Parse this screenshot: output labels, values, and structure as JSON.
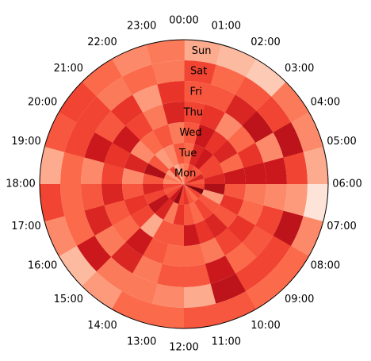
{
  "chart_data": {
    "type": "heatmap",
    "subtype": "polar",
    "colormap": "Reds",
    "theta_direction": "clockwise",
    "theta_zero": "top",
    "hours": [
      "00:00",
      "01:00",
      "02:00",
      "03:00",
      "04:00",
      "05:00",
      "06:00",
      "07:00",
      "08:00",
      "09:00",
      "10:00",
      "11:00",
      "12:00",
      "13:00",
      "14:00",
      "15:00",
      "16:00",
      "17:00",
      "18:00",
      "19:00",
      "20:00",
      "21:00",
      "22:00",
      "23:00"
    ],
    "days": [
      "Mon",
      "Tue",
      "Wed",
      "Thu",
      "Fri",
      "Sat",
      "Sun"
    ],
    "values": [
      [
        0.45,
        0.5,
        0.55,
        0.6,
        0.55,
        0.6,
        0.3
      ],
      [
        0.6,
        0.7,
        0.75,
        0.65,
        0.55,
        0.5,
        0.25
      ],
      [
        0.55,
        0.75,
        0.65,
        0.4,
        0.7,
        0.55,
        0.2
      ],
      [
        0.55,
        0.6,
        0.7,
        0.5,
        0.8,
        0.6,
        0.45
      ],
      [
        0.7,
        0.6,
        0.5,
        0.65,
        0.4,
        0.8,
        0.4
      ],
      [
        0.55,
        0.7,
        0.75,
        0.75,
        0.75,
        0.6,
        0.3
      ],
      [
        0.6,
        0.85,
        0.55,
        0.45,
        0.4,
        0.35,
        0.1
      ],
      [
        0.95,
        0.35,
        0.65,
        0.5,
        0.6,
        0.8,
        0.4
      ],
      [
        0.6,
        0.55,
        0.55,
        0.65,
        0.55,
        0.6,
        0.5
      ],
      [
        0.5,
        0.6,
        0.7,
        0.6,
        0.5,
        0.6,
        0.5
      ],
      [
        0.55,
        0.5,
        0.65,
        0.45,
        0.75,
        0.8,
        0.55
      ],
      [
        0.65,
        0.55,
        0.75,
        0.5,
        0.55,
        0.3,
        0.55
      ],
      [
        0.6,
        0.65,
        0.55,
        0.5,
        0.55,
        0.4,
        0.5
      ],
      [
        0.9,
        0.45,
        0.55,
        0.55,
        0.45,
        0.45,
        0.5
      ],
      [
        0.75,
        0.7,
        0.3,
        0.75,
        0.7,
        0.45,
        0.35
      ],
      [
        0.6,
        0.8,
        0.6,
        0.5,
        0.45,
        0.75,
        0.25
      ],
      [
        0.55,
        0.6,
        0.65,
        0.55,
        0.7,
        0.5,
        0.4
      ],
      [
        0.6,
        0.7,
        0.55,
        0.7,
        0.55,
        0.5,
        0.6
      ],
      [
        0.4,
        0.55,
        0.4,
        0.6,
        0.4,
        0.5,
        0.3
      ],
      [
        0.45,
        0.85,
        0.7,
        0.65,
        0.75,
        0.6,
        0.55
      ],
      [
        0.35,
        0.55,
        0.4,
        0.75,
        0.55,
        0.6,
        0.6
      ],
      [
        0.6,
        0.35,
        0.5,
        0.6,
        0.65,
        0.45,
        0.5
      ],
      [
        0.3,
        0.4,
        0.55,
        0.45,
        0.35,
        0.5,
        0.4
      ],
      [
        0.4,
        0.55,
        0.45,
        0.7,
        0.65,
        0.45,
        0.45
      ]
    ],
    "vmin": 0,
    "vmax": 1
  }
}
